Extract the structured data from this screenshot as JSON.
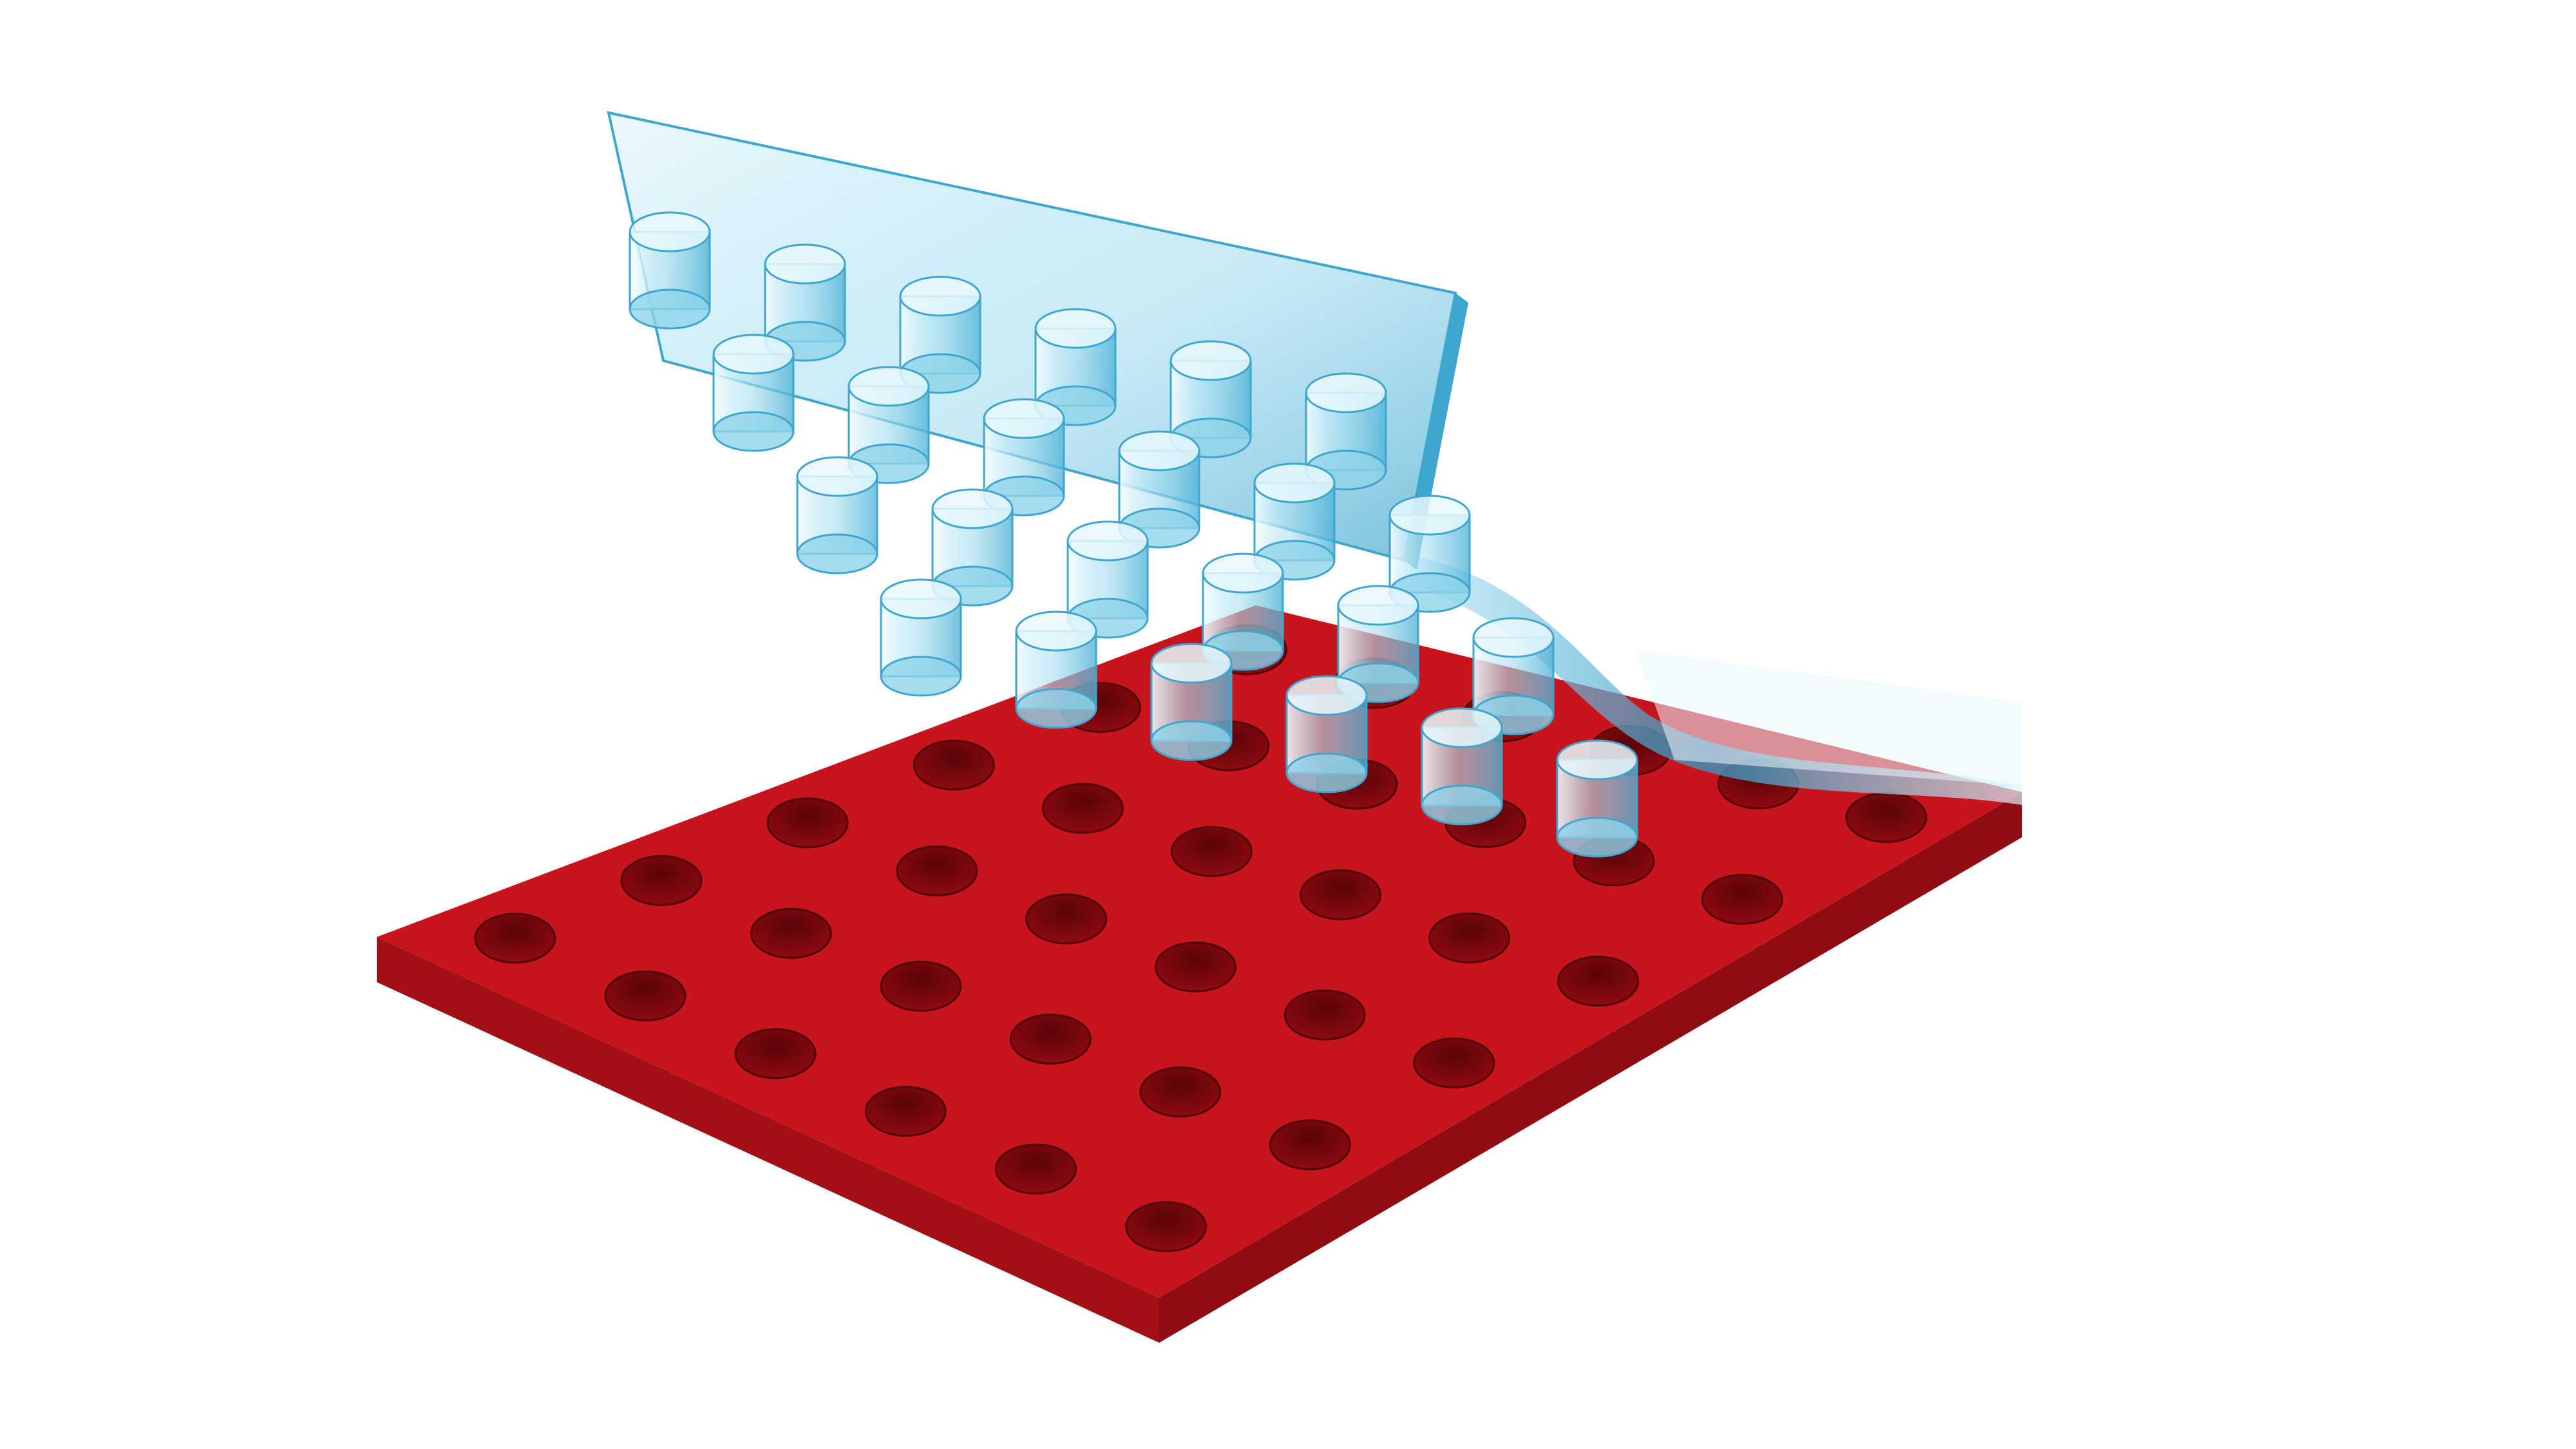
{
  "scene": {
    "subject": "render",
    "colors": {
      "background": "#ffffff",
      "tray_top": "#c8141c",
      "tray_front": "#a30f15",
      "tray_right": "#8f0c12",
      "well_inner": "#7a070c",
      "well_shadow": "#4f0307",
      "lid_tint": "#8fd3ea",
      "lid_edge": "#3fa6cf",
      "lid_highlight": "#e8f8fd"
    },
    "tray": {
      "rows": 6,
      "columns": 6
    },
    "lid": {
      "rows": 4,
      "columns": 6
    }
  }
}
